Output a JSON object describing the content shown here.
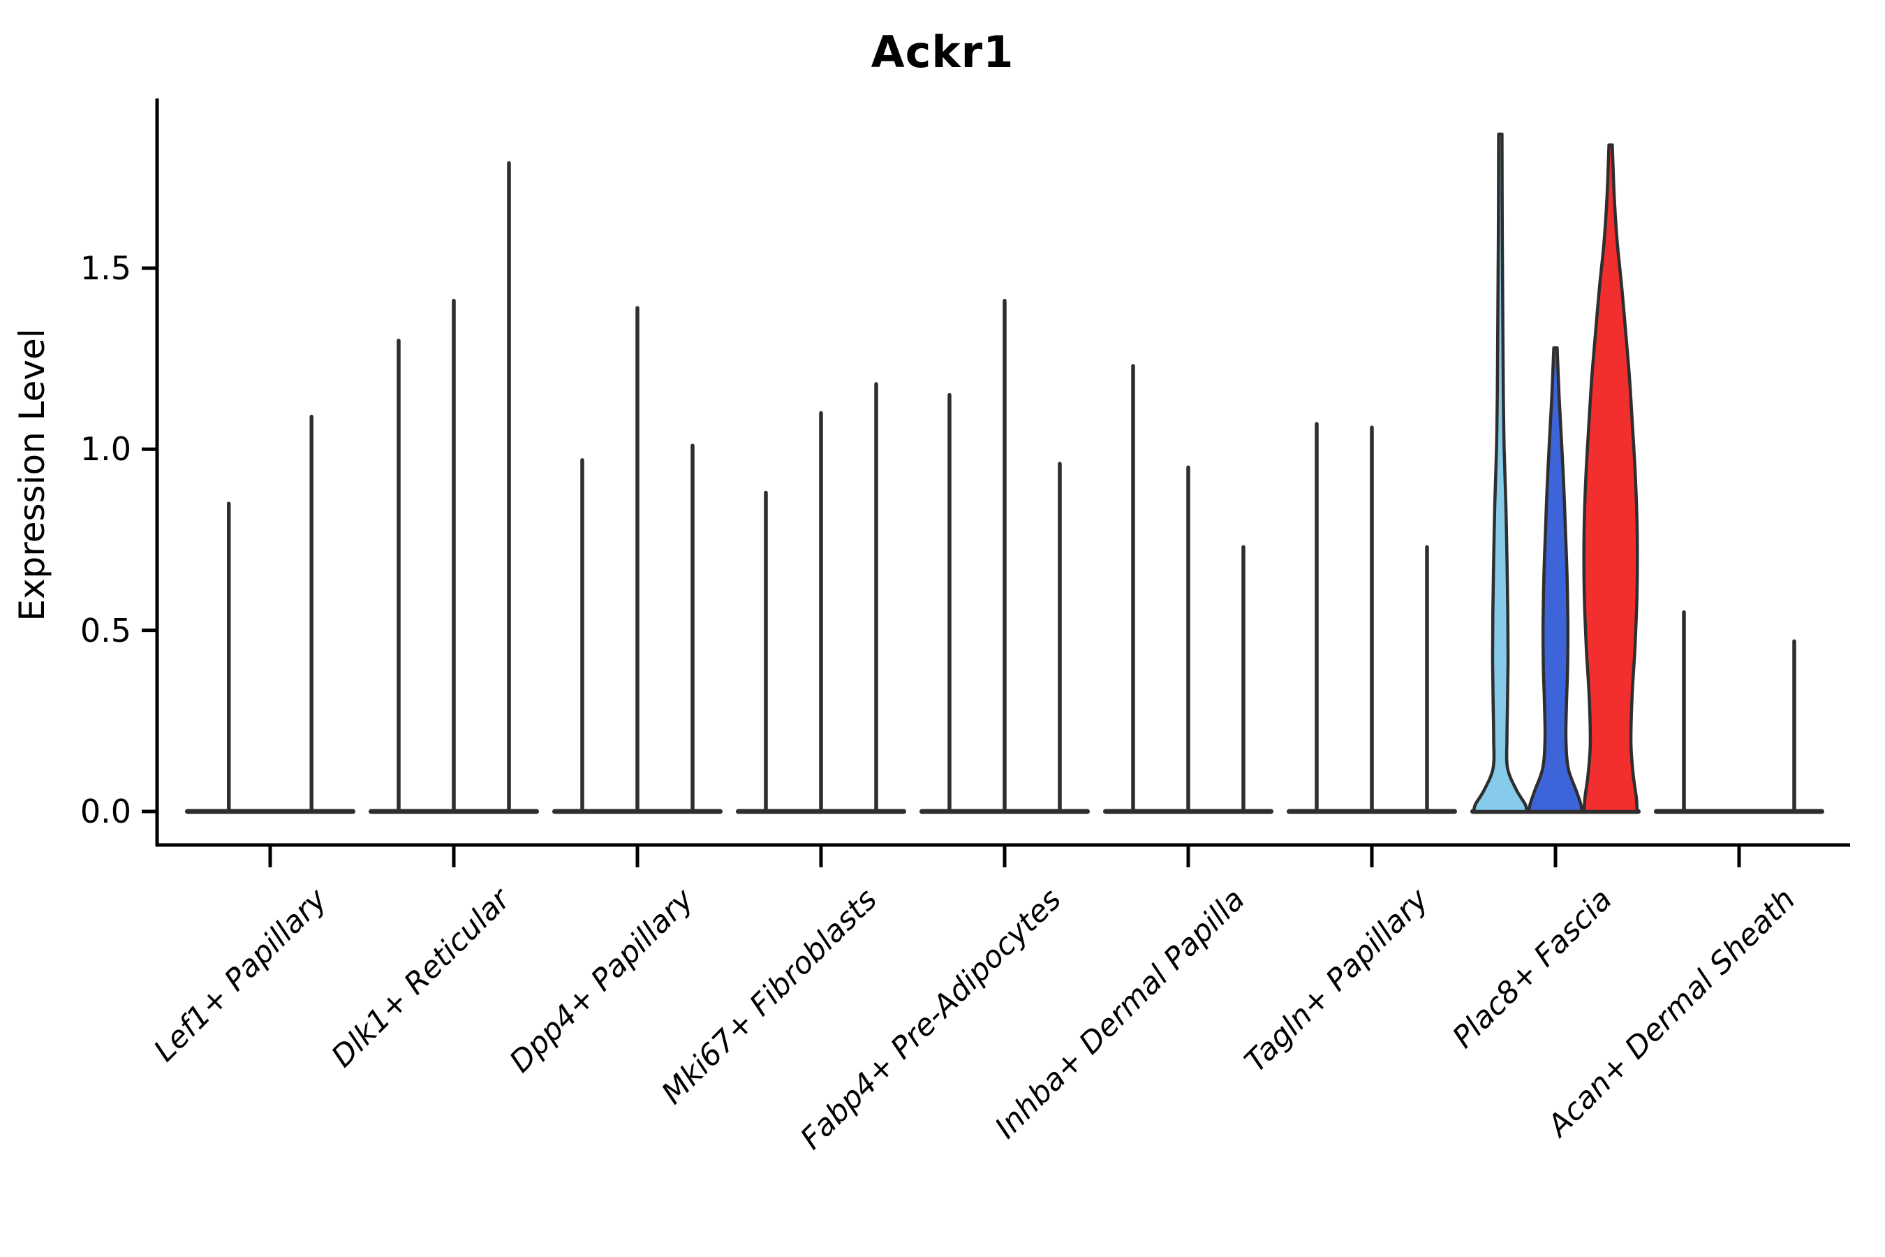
{
  "page": {
    "title": "Ackr1"
  },
  "axes": {
    "ylabel": "Expression Level",
    "ytick_labels": [
      "0.0",
      "0.5",
      "1.0",
      "1.5"
    ]
  },
  "colors": {
    "spine": "#000000",
    "violin_outline": "#2e2e2e",
    "fill_lightblue": "#87CBEA",
    "fill_blue": "#3E64D9",
    "fill_red": "#F22E2E"
  },
  "chart_data": {
    "type": "violin",
    "title": "Ackr1",
    "ylabel": "Expression Level",
    "yticks": [
      0.0,
      0.5,
      1.0,
      1.5
    ],
    "ylim": [
      -0.09,
      1.97
    ],
    "grid": false,
    "legend_position": "none",
    "categories": [
      "Lef1+ Papillary",
      "Dlk1+ Reticular",
      "Dpp4+ Papillary",
      "Mki67+ Fibroblasts",
      "Fabp4+ Pre-Adipocytes",
      "Inhba+ Dermal Papilla",
      "Tagln+ Papillary",
      "Plac8+ Fascia",
      "Acan+ Dermal Sheath"
    ],
    "groups": [
      {
        "category": "Lef1+ Papillary",
        "violins": [
          {
            "peak": 0.85,
            "fill": null
          },
          {
            "peak": 1.09,
            "fill": null
          }
        ]
      },
      {
        "category": "Dlk1+ Reticular",
        "violins": [
          {
            "peak": 1.3,
            "fill": null
          },
          {
            "peak": 1.41,
            "fill": null
          },
          {
            "peak": 1.79,
            "fill": null
          }
        ]
      },
      {
        "category": "Dpp4+ Papillary",
        "violins": [
          {
            "peak": 0.97,
            "fill": null
          },
          {
            "peak": 1.39,
            "fill": null
          },
          {
            "peak": 1.01,
            "fill": null
          }
        ]
      },
      {
        "category": "Mki67+ Fibroblasts",
        "violins": [
          {
            "peak": 0.88,
            "fill": null
          },
          {
            "peak": 1.1,
            "fill": null
          },
          {
            "peak": 1.18,
            "fill": null
          }
        ]
      },
      {
        "category": "Fabp4+ Pre-Adipocytes",
        "violins": [
          {
            "peak": 1.15,
            "fill": null
          },
          {
            "peak": 1.41,
            "fill": null
          },
          {
            "peak": 0.96,
            "fill": null
          }
        ]
      },
      {
        "category": "Inhba+ Dermal Papilla",
        "violins": [
          {
            "peak": 1.23,
            "fill": null
          },
          {
            "peak": 0.95,
            "fill": null
          },
          {
            "peak": 0.73,
            "fill": null
          }
        ]
      },
      {
        "category": "Tagln+ Papillary",
        "violins": [
          {
            "peak": 1.07,
            "fill": null
          },
          {
            "peak": 1.06,
            "fill": null
          },
          {
            "peak": 0.73,
            "fill": null
          }
        ]
      },
      {
        "category": "Plac8+ Fascia",
        "violins": [
          {
            "peak": 1.87,
            "fill": "#87CBEA",
            "profile": [
              [
                1.87,
                0.06
              ],
              [
                1.6,
                0.07
              ],
              [
                1.35,
                0.09
              ],
              [
                1.15,
                0.11
              ],
              [
                1.0,
                0.14
              ],
              [
                0.85,
                0.2
              ],
              [
                0.7,
                0.24
              ],
              [
                0.55,
                0.27
              ],
              [
                0.42,
                0.28
              ],
              [
                0.3,
                0.26
              ],
              [
                0.2,
                0.24
              ],
              [
                0.12,
                0.26
              ],
              [
                0.06,
                0.58
              ],
              [
                0.02,
                0.9
              ],
              [
                0.0,
                0.96
              ]
            ]
          },
          {
            "peak": 1.28,
            "fill": "#3E64D9",
            "profile": [
              [
                1.28,
                0.06
              ],
              [
                1.15,
                0.13
              ],
              [
                1.02,
                0.22
              ],
              [
                0.9,
                0.3
              ],
              [
                0.78,
                0.36
              ],
              [
                0.65,
                0.42
              ],
              [
                0.52,
                0.45
              ],
              [
                0.4,
                0.44
              ],
              [
                0.3,
                0.4
              ],
              [
                0.2,
                0.38
              ],
              [
                0.12,
                0.46
              ],
              [
                0.06,
                0.74
              ],
              [
                0.02,
                0.92
              ],
              [
                0.0,
                0.96
              ]
            ]
          },
          {
            "peak": 1.84,
            "fill": "#F22E2E",
            "profile": [
              [
                1.84,
                0.06
              ],
              [
                1.7,
                0.13
              ],
              [
                1.57,
                0.24
              ],
              [
                1.45,
                0.4
              ],
              [
                1.32,
                0.55
              ],
              [
                1.2,
                0.68
              ],
              [
                1.08,
                0.78
              ],
              [
                0.95,
                0.88
              ],
              [
                0.82,
                0.95
              ],
              [
                0.7,
                0.97
              ],
              [
                0.58,
                0.95
              ],
              [
                0.45,
                0.88
              ],
              [
                0.35,
                0.8
              ],
              [
                0.26,
                0.75
              ],
              [
                0.18,
                0.74
              ],
              [
                0.1,
                0.82
              ],
              [
                0.04,
                0.93
              ],
              [
                0.0,
                0.96
              ]
            ]
          }
        ]
      },
      {
        "category": "Acan+ Dermal Sheath",
        "violins": [
          {
            "peak": 0.55,
            "fill": null
          },
          {
            "peak": 0.0,
            "fill": null
          },
          {
            "peak": 0.47,
            "fill": null
          }
        ]
      }
    ]
  }
}
